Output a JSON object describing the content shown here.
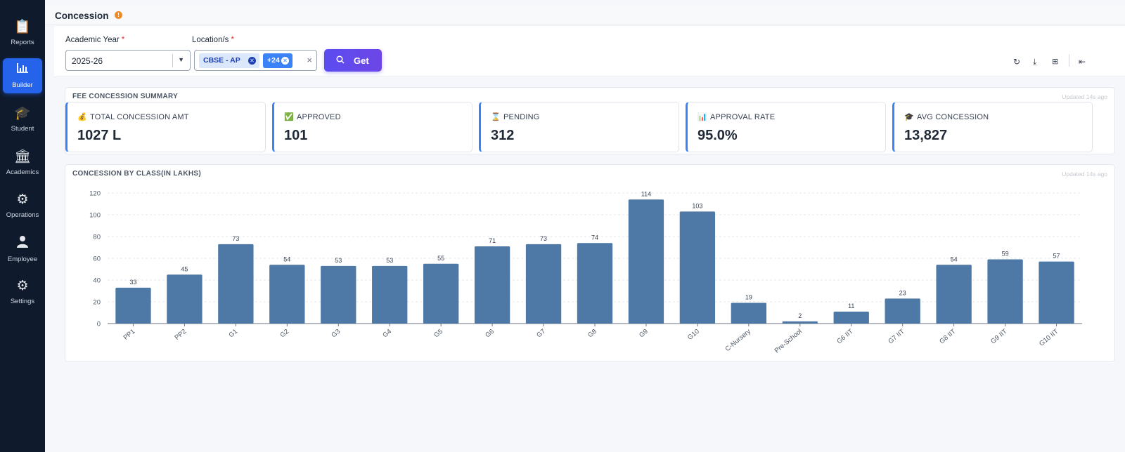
{
  "sidebar": {
    "items": [
      {
        "label": "Reports",
        "icon": "reports-icon",
        "active": false
      },
      {
        "label": "Builder",
        "icon": "bar-chart-icon",
        "active": true
      },
      {
        "label": "Student",
        "icon": "student-icon",
        "active": false
      },
      {
        "label": "Academics",
        "icon": "institution-icon",
        "active": false
      },
      {
        "label": "Operations",
        "icon": "gear-icon",
        "active": false
      },
      {
        "label": "Employee",
        "icon": "person-icon",
        "active": false
      },
      {
        "label": "Settings",
        "icon": "settings-icon",
        "active": false
      }
    ]
  },
  "header": {
    "title": "Concession",
    "info_icon": "info-icon"
  },
  "filters": {
    "academic_year": {
      "label": "Academic Year",
      "value": "2025-26"
    },
    "locations": {
      "label": "Location/s",
      "chips": [
        "CBSE - AP",
        "+24"
      ]
    },
    "required_mark": "*",
    "get_label": "Get"
  },
  "toolbar": {
    "icons": [
      "refresh-icon",
      "download-icon",
      "grid-icon",
      "collapse-icon"
    ]
  },
  "summary": {
    "title": "FEE CONCESSION SUMMARY",
    "updated": "Updated 14s ago",
    "kpis": [
      {
        "icon": "money-bag-icon",
        "label": "TOTAL CONCESSION AMT",
        "value": "1027 L"
      },
      {
        "icon": "check-mark-icon",
        "label": "APPROVED",
        "value": "101"
      },
      {
        "icon": "hourglass-icon",
        "label": "PENDING",
        "value": "312"
      },
      {
        "icon": "bar-chart-icon",
        "label": "APPROVAL RATE",
        "value": "95.0%"
      },
      {
        "icon": "graduation-cap-icon",
        "label": "AVG CONCESSION",
        "value": "13,827"
      }
    ]
  },
  "chart_panel": {
    "title": "CONCESSION BY CLASS(IN LAKHS)",
    "updated": "Updated 14s ago"
  },
  "chart_data": {
    "type": "bar",
    "title": "CONCESSION BY CLASS(IN LAKHS)",
    "categories": [
      "PP1",
      "PP2",
      "G1",
      "G2",
      "G3",
      "G4",
      "G5",
      "G6",
      "G7",
      "G8",
      "G9",
      "G10",
      "C-Nursery",
      "Pre-School",
      "G6 IIT",
      "G7 IIT",
      "G8 IIT",
      "G9 IIT",
      "G10 IIT"
    ],
    "values": [
      33,
      45,
      73,
      54,
      53,
      53,
      55,
      71,
      73,
      74,
      114,
      103,
      19,
      2,
      11,
      23,
      54,
      59,
      57
    ],
    "ylim": [
      0,
      120
    ],
    "yticks": [
      0,
      20,
      40,
      60,
      80,
      100,
      120
    ],
    "grid": true,
    "bar_color": "#4e79a7"
  }
}
